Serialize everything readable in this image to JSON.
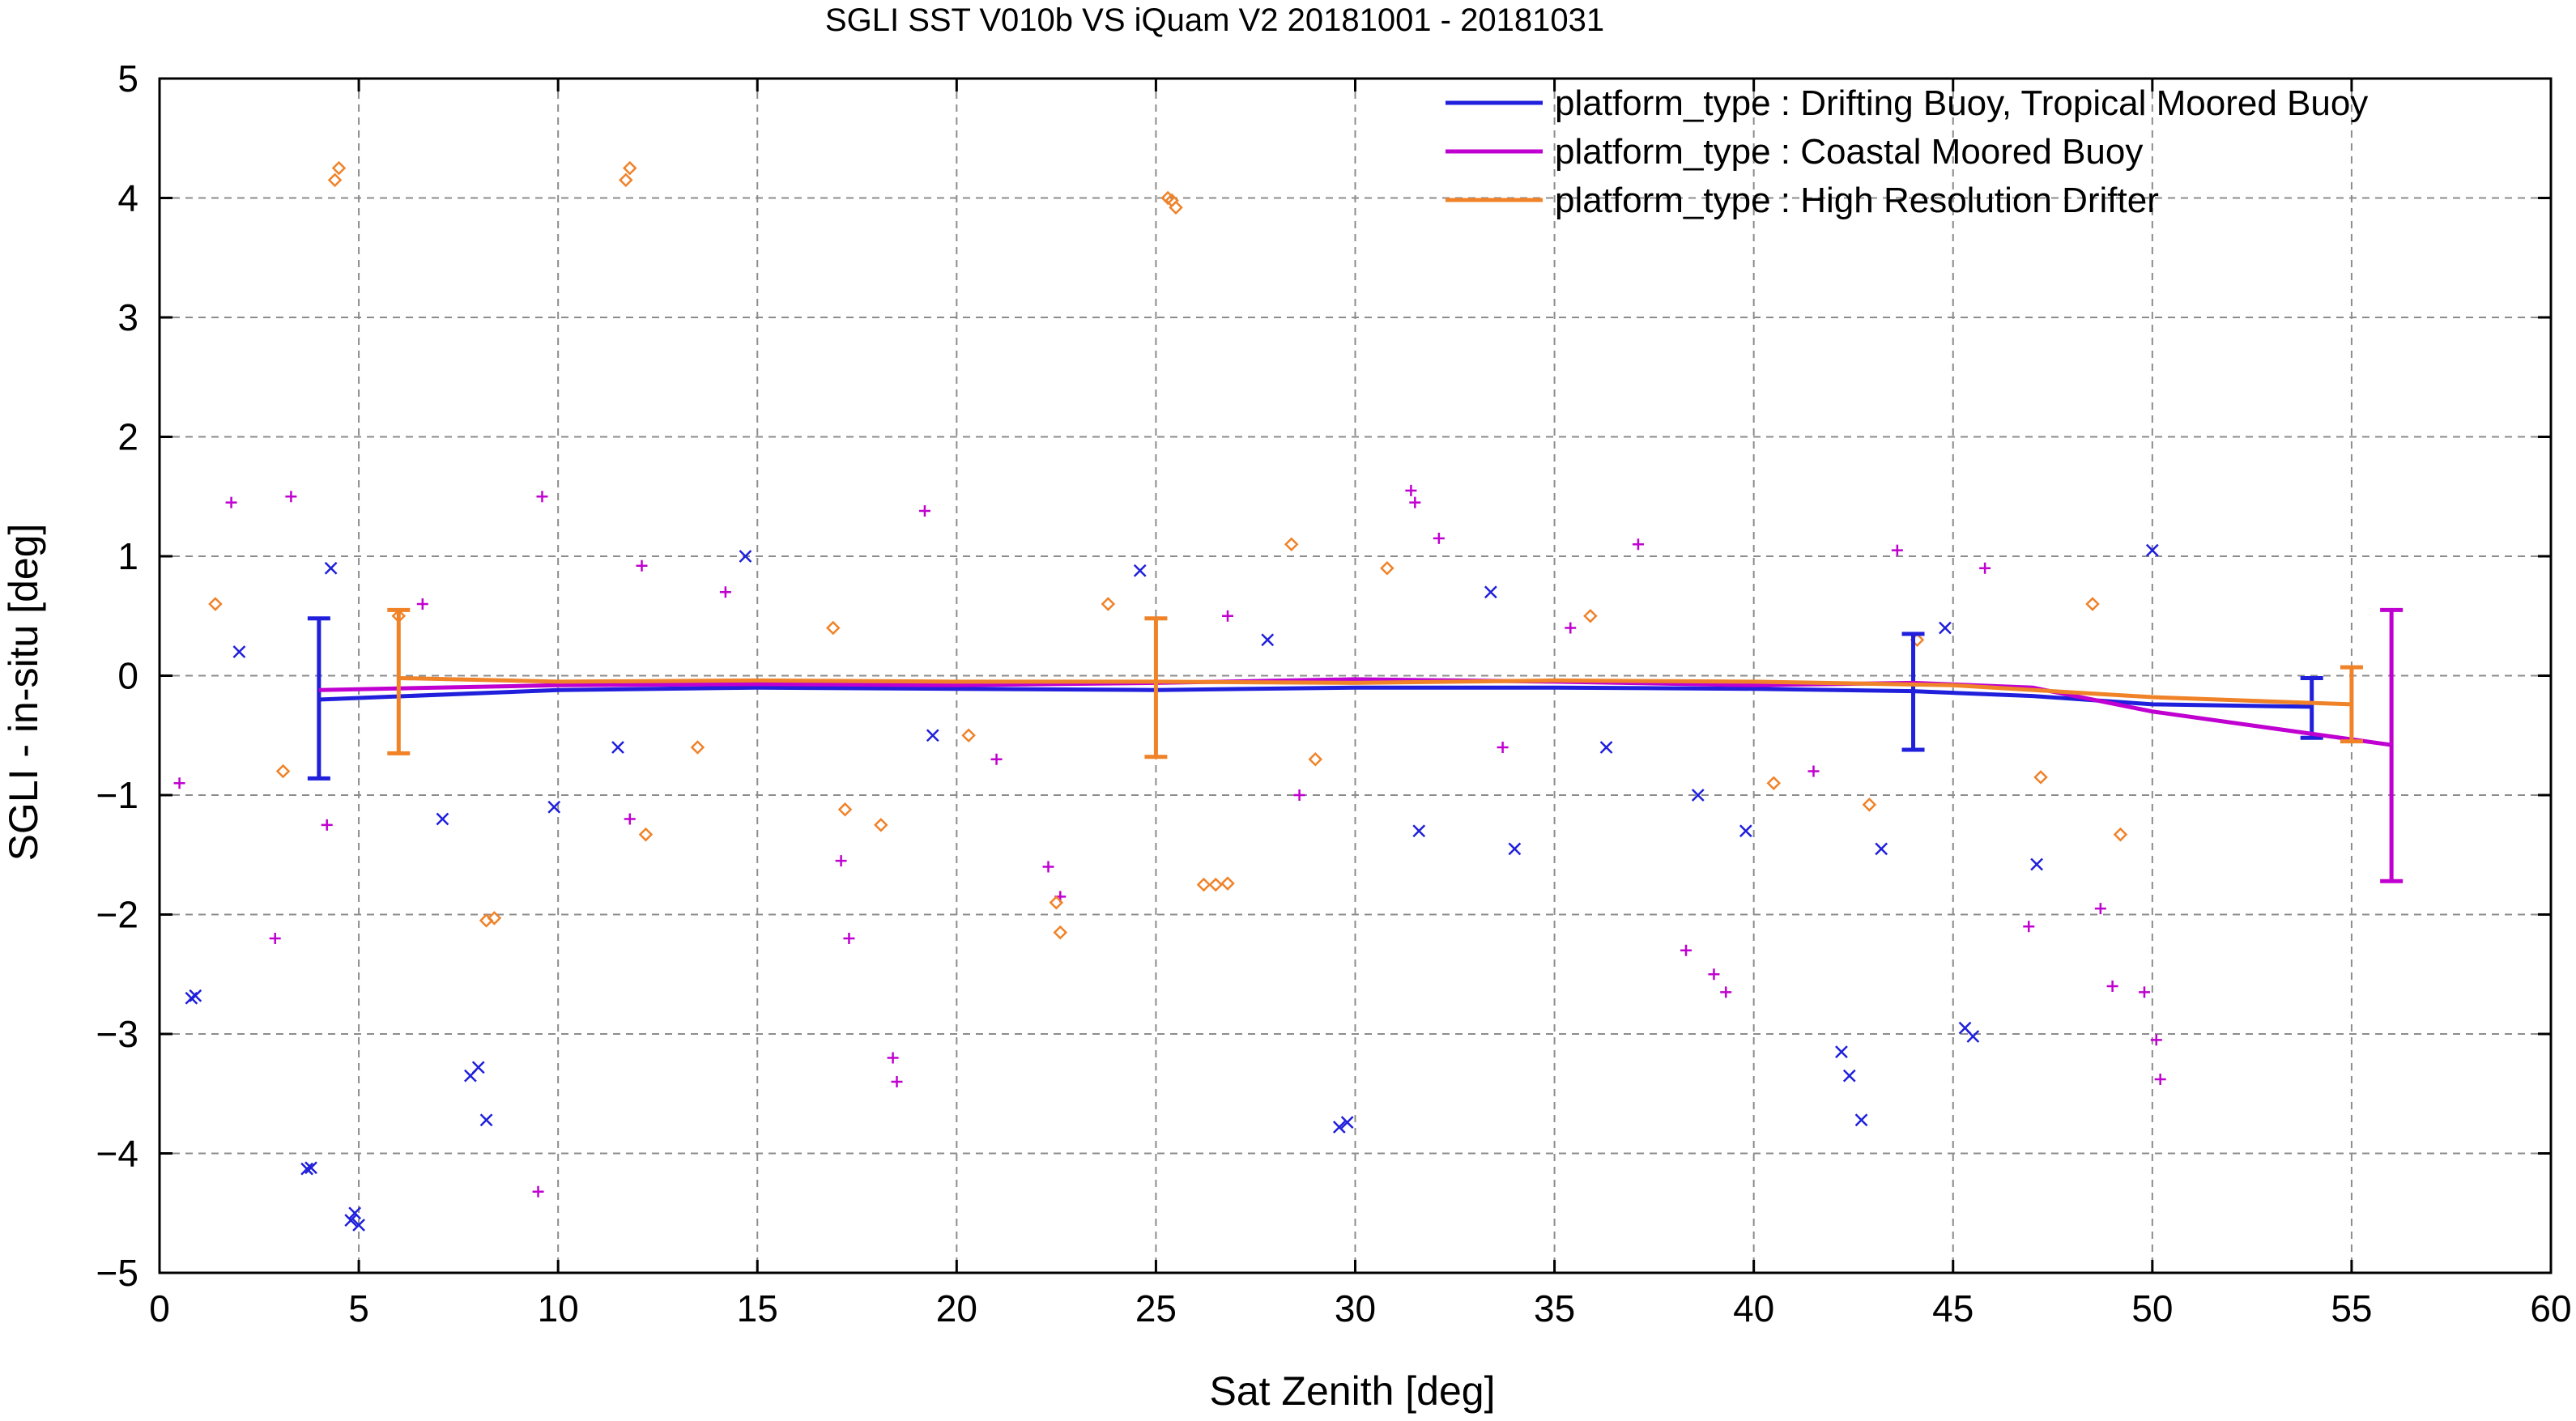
{
  "chart_data": {
    "type": "scatter",
    "title": "SGLI SST V010b VS iQuam V2 20181001 - 20181031",
    "xlabel": "Sat Zenith [deg]",
    "ylabel": "SGLI - in-situ [deg]",
    "xlim": [
      0,
      60
    ],
    "ylim": [
      -5,
      5
    ],
    "x_ticks": [
      0,
      5,
      10,
      15,
      20,
      25,
      30,
      35,
      40,
      45,
      50,
      55,
      60
    ],
    "y_ticks": [
      -5,
      -4,
      -3,
      -2,
      -1,
      0,
      1,
      2,
      3,
      4,
      5
    ],
    "x_tick_labels": [
      "0",
      "5",
      "10",
      "15",
      "20",
      "25",
      "30",
      "35",
      "40",
      "45",
      "50",
      "55",
      "60"
    ],
    "y_tick_labels": [
      "−5",
      "−4",
      "−3",
      "−2",
      "−1",
      "0",
      "1",
      "2",
      "3",
      "4",
      "5"
    ],
    "grid": true,
    "legend_position": "top-right",
    "series": [
      {
        "name": "platform_type : Drifting Buoy, Tropical Moored Buoy",
        "color": "#1f1fdc",
        "marker": "x",
        "x": [
          0.8,
          0.9,
          3.7,
          3.8,
          4.8,
          4.9,
          5.0,
          7.8,
          8.0,
          8.2,
          29.6,
          29.8,
          42.2,
          42.4,
          42.7,
          43.2,
          45.3,
          45.5,
          4.3,
          7.1,
          9.9,
          14.7,
          24.6,
          31.6,
          34.0,
          39.8,
          50.0,
          47.1,
          33.4,
          38.6,
          2.0,
          11.5,
          19.4,
          27.8,
          36.3,
          44.8
        ],
        "y": [
          -2.7,
          -2.68,
          -4.13,
          -4.12,
          -4.56,
          -4.5,
          -4.6,
          -3.35,
          -3.28,
          -3.72,
          -3.78,
          -3.74,
          -3.15,
          -3.35,
          -3.72,
          -1.45,
          -2.95,
          -3.02,
          0.9,
          -1.2,
          -1.1,
          1.0,
          0.88,
          -1.3,
          -1.45,
          -1.3,
          1.05,
          -1.58,
          0.7,
          -1.0,
          0.2,
          -0.6,
          -0.5,
          0.3,
          -0.6,
          0.4
        ],
        "curve_x": [
          4,
          10,
          15,
          20,
          25,
          30,
          35,
          40,
          44,
          47,
          50,
          54
        ],
        "curve_y": [
          -0.2,
          -0.12,
          -0.1,
          -0.11,
          -0.12,
          -0.1,
          -0.1,
          -0.11,
          -0.13,
          -0.17,
          -0.24,
          -0.26
        ],
        "errorbars": [
          {
            "x": 4.0,
            "low": -0.86,
            "high": 0.48
          },
          {
            "x": 44.0,
            "low": -0.62,
            "high": 0.35
          },
          {
            "x": 54.0,
            "low": -0.52,
            "high": -0.02
          }
        ]
      },
      {
        "name": "platform_type : Coastal Moored Buoy",
        "color": "#c000d0",
        "marker": "+",
        "x": [
          1.8,
          2.9,
          3.3,
          9.5,
          9.6,
          18.4,
          18.5,
          19.2,
          17.1,
          17.3,
          22.3,
          22.6,
          31.4,
          31.5,
          32.1,
          38.3,
          39.0,
          39.3,
          43.6,
          46.9,
          48.7,
          49.0,
          49.8,
          50.1,
          50.2,
          4.2,
          11.8,
          12.1,
          0.5,
          6.6,
          14.2,
          21.0,
          26.8,
          33.7,
          37.1,
          41.5,
          45.8,
          28.6,
          35.4
        ],
        "y": [
          1.45,
          -2.2,
          1.5,
          -4.32,
          1.5,
          -3.2,
          -3.4,
          1.38,
          -1.55,
          -2.2,
          -1.6,
          -1.85,
          1.55,
          1.45,
          1.15,
          -2.3,
          -2.5,
          -2.65,
          1.05,
          -2.1,
          -1.95,
          -2.6,
          -2.65,
          -3.05,
          -3.38,
          -1.25,
          -1.2,
          0.92,
          -0.9,
          0.6,
          0.7,
          -0.7,
          0.5,
          -0.6,
          1.1,
          -0.8,
          0.9,
          -1.0,
          0.4
        ],
        "curve_x": [
          4,
          10,
          15,
          20,
          25,
          30,
          35,
          40,
          44,
          47,
          50,
          56
        ],
        "curve_y": [
          -0.12,
          -0.08,
          -0.07,
          -0.08,
          -0.06,
          -0.03,
          -0.05,
          -0.08,
          -0.06,
          -0.1,
          -0.3,
          -0.58
        ],
        "errorbars": [
          {
            "x": 56.0,
            "low": -1.72,
            "high": 0.55
          }
        ]
      },
      {
        "name": "platform_type : High Resolution Drifter",
        "color": "#f08228",
        "marker": "diamond",
        "x": [
          4.4,
          4.5,
          11.7,
          11.8,
          25.3,
          25.4,
          25.5,
          8.2,
          8.4,
          22.5,
          22.6,
          26.2,
          26.5,
          26.8,
          12.2,
          17.2,
          18.1,
          28.4,
          30.8,
          42.9,
          47.2,
          49.2,
          1.4,
          3.1,
          6.0,
          13.5,
          16.9,
          20.3,
          23.8,
          29.0,
          35.9,
          40.5,
          44.1,
          48.5
        ],
        "y": [
          4.15,
          4.25,
          4.15,
          4.25,
          4.0,
          3.98,
          3.92,
          -2.05,
          -2.03,
          -1.9,
          -2.15,
          -1.75,
          -1.75,
          -1.74,
          -1.33,
          -1.12,
          -1.25,
          1.1,
          0.9,
          -1.08,
          -0.85,
          -1.33,
          0.6,
          -0.8,
          0.5,
          -0.6,
          0.4,
          -0.5,
          0.6,
          -0.7,
          0.5,
          -0.9,
          0.3,
          0.6
        ],
        "curve_x": [
          6,
          10,
          15,
          20,
          25,
          30,
          35,
          40,
          45,
          50,
          55
        ],
        "curve_y": [
          -0.02,
          -0.05,
          -0.04,
          -0.05,
          -0.05,
          -0.06,
          -0.04,
          -0.05,
          -0.08,
          -0.18,
          -0.24
        ],
        "errorbars": [
          {
            "x": 6.0,
            "low": -0.65,
            "high": 0.55
          },
          {
            "x": 25.0,
            "low": -0.68,
            "high": 0.48
          },
          {
            "x": 55.0,
            "low": -0.55,
            "high": 0.07
          }
        ]
      }
    ]
  }
}
